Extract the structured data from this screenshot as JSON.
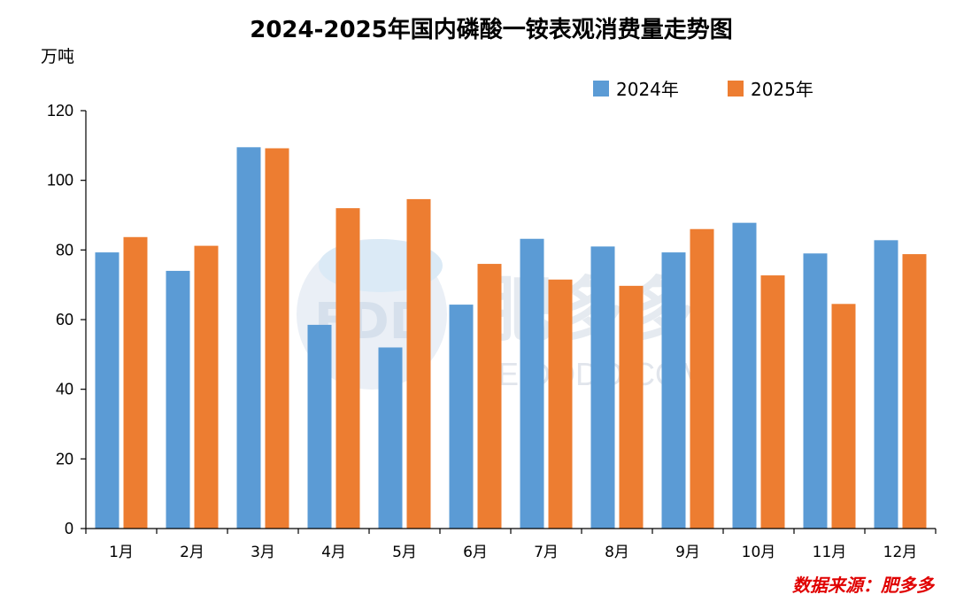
{
  "chart_data": {
    "type": "bar",
    "title": "2024-2025年国内磷酸一铵表观消费量走势图",
    "ylabel": "万吨",
    "xlabel": "",
    "ylim": [
      0,
      120
    ],
    "yticks": [
      0,
      20,
      40,
      60,
      80,
      100,
      120
    ],
    "categories": [
      "1月",
      "2月",
      "3月",
      "4月",
      "5月",
      "6月",
      "7月",
      "8月",
      "9月",
      "10月",
      "11月",
      "12月"
    ],
    "series": [
      {
        "name": "2024年",
        "color": "#5b9bd5",
        "values": [
          79.3,
          74.0,
          109.5,
          58.5,
          52.0,
          64.3,
          83.2,
          81.0,
          79.3,
          87.8,
          79.0,
          82.8
        ]
      },
      {
        "name": "2025年",
        "color": "#ed7d31",
        "values": [
          83.7,
          81.2,
          109.2,
          92.0,
          94.6,
          76.0,
          71.5,
          69.7,
          86.0,
          72.7,
          64.5,
          78.8
        ]
      }
    ],
    "legend_position": "top-right",
    "grid": false
  },
  "source_label": "数据来源：肥多多",
  "watermark": {
    "brand": "肥多多",
    "domain": "FEIDODO.COM",
    "logo_text": "FDD"
  }
}
